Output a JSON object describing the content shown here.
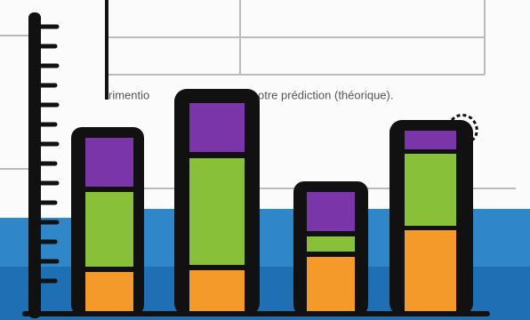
{
  "caption": {
    "left_fragment": "rimentio",
    "right_fragment": "otre prédiction (théorique)."
  }
}
